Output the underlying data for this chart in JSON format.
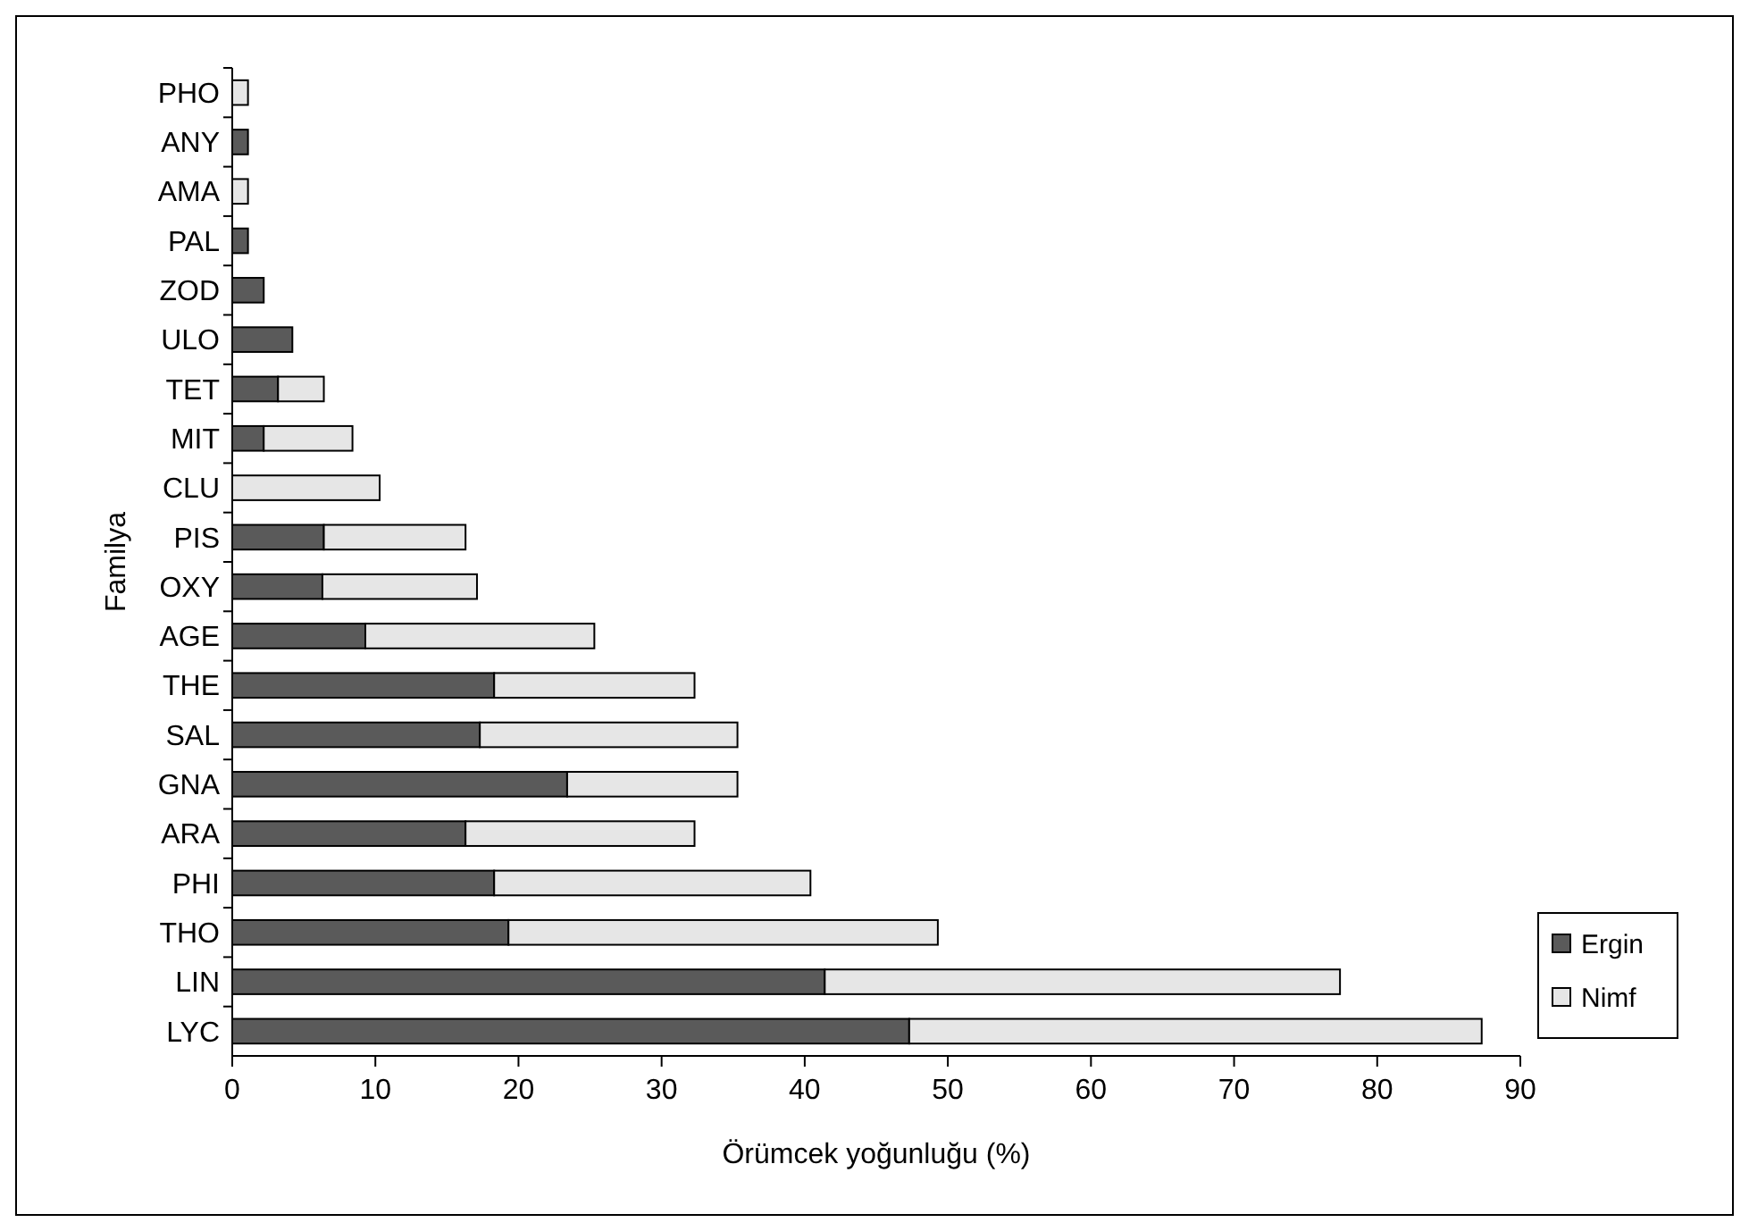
{
  "chart_data": {
    "type": "bar",
    "orientation": "horizontal",
    "stacked": true,
    "xlabel": "Örümcek yoğunluğu (%)",
    "ylabel": "Familya",
    "categories": [
      "PHO",
      "ANY",
      "AMA",
      "PAL",
      "ZOD",
      "ULO",
      "TET",
      "MIT",
      "CLU",
      "PIS",
      "OXY",
      "AGE",
      "THE",
      "SAL",
      "GNA",
      "ARA",
      "PHI",
      "THO",
      "LIN",
      "LYC"
    ],
    "series": [
      {
        "name": "Ergin",
        "color": "#5a5a5a",
        "values": [
          0,
          1.1,
          0,
          1.1,
          2.2,
          4.2,
          3.2,
          2.2,
          0,
          6.4,
          6.3,
          9.3,
          18.3,
          17.3,
          23.4,
          16.3,
          18.3,
          19.3,
          41.4,
          47.3
        ]
      },
      {
        "name": "Nimf",
        "color": "#e6e6e6",
        "values": [
          1.1,
          0,
          1.1,
          0,
          0,
          0,
          3.2,
          6.2,
          10.3,
          9.9,
          10.8,
          16,
          14,
          18,
          11.9,
          16,
          22.1,
          30,
          36,
          40
        ]
      }
    ],
    "xlim": [
      0,
      90
    ],
    "xticks": [
      0,
      10,
      20,
      30,
      40,
      50,
      60,
      70,
      80,
      90
    ],
    "grid": false,
    "legend": "bottom right"
  }
}
